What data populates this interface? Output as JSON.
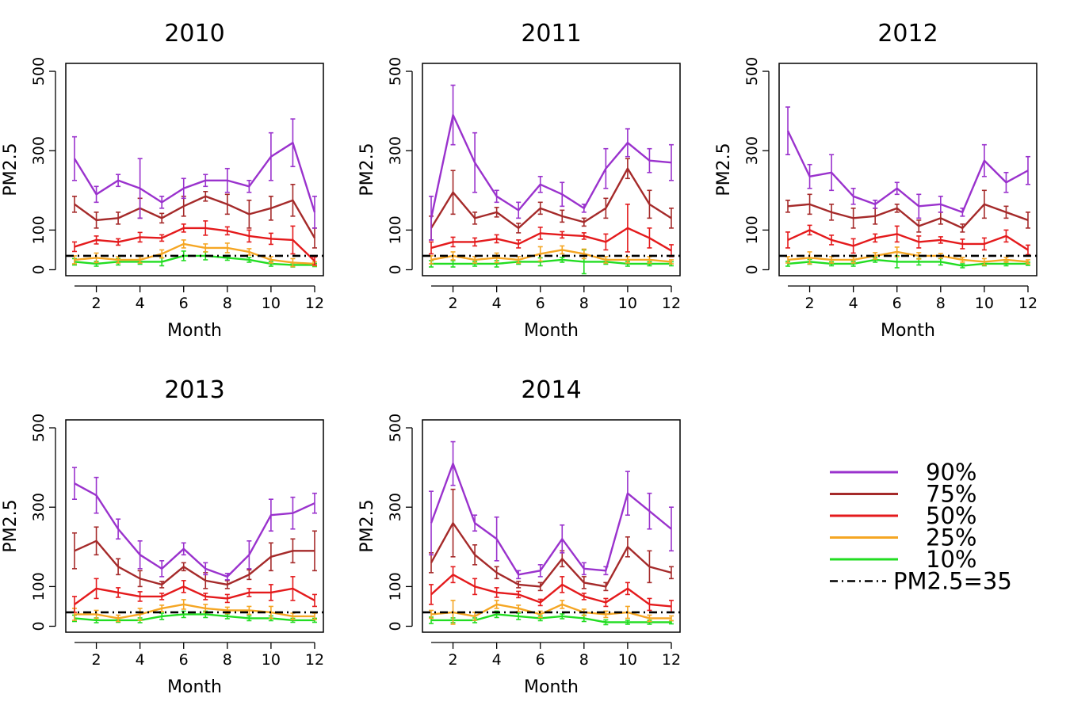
{
  "chart_data": [
    {
      "type": "line",
      "title": "2010",
      "xlabel": "Month",
      "ylabel": "PM2.5",
      "x": [
        1,
        2,
        3,
        4,
        5,
        6,
        7,
        8,
        9,
        10,
        11,
        12
      ],
      "xticks": [
        "2",
        "4",
        "6",
        "8",
        "10",
        "12"
      ],
      "yticks": [
        "0",
        "100",
        "300",
        "500"
      ],
      "xlim": [
        0.6,
        12.4
      ],
      "ylim": [
        -15,
        520
      ],
      "threshold": 35,
      "series": [
        {
          "name": "90%",
          "color": "#9A32CD",
          "values": [
            280,
            190,
            225,
            205,
            170,
            205,
            225,
            225,
            210,
            285,
            320,
            145
          ],
          "err": [
            55,
            20,
            15,
            75,
            15,
            25,
            15,
            30,
            15,
            60,
            60,
            40
          ]
        },
        {
          "name": "75%",
          "color": "#A52A2A",
          "values": [
            165,
            125,
            130,
            155,
            130,
            160,
            185,
            165,
            140,
            155,
            175,
            80
          ],
          "err": [
            20,
            20,
            15,
            25,
            12,
            25,
            12,
            25,
            35,
            30,
            40,
            25
          ]
        },
        {
          "name": "50%",
          "color": "#E41A1C",
          "values": [
            58,
            75,
            70,
            82,
            80,
            105,
            105,
            98,
            85,
            78,
            75,
            22
          ],
          "err": [
            12,
            10,
            8,
            12,
            8,
            10,
            18,
            10,
            15,
            14,
            35,
            10
          ]
        },
        {
          "name": "25%",
          "color": "#F5A623",
          "values": [
            25,
            30,
            25,
            25,
            40,
            65,
            55,
            55,
            45,
            25,
            18,
            15
          ],
          "err": [
            10,
            12,
            8,
            8,
            10,
            10,
            10,
            12,
            8,
            8,
            10,
            5
          ]
        },
        {
          "name": "10%",
          "color": "#22DD22",
          "values": [
            20,
            15,
            20,
            20,
            20,
            35,
            35,
            30,
            25,
            15,
            12,
            12
          ],
          "err": [
            8,
            6,
            8,
            6,
            10,
            12,
            10,
            6,
            6,
            6,
            5,
            4
          ]
        }
      ]
    },
    {
      "type": "line",
      "title": "2011",
      "xlabel": "Month",
      "ylabel": "PM2.5",
      "x": [
        1,
        2,
        3,
        4,
        5,
        6,
        7,
        8,
        9,
        10,
        11,
        12
      ],
      "xticks": [
        "2",
        "4",
        "6",
        "8",
        "10",
        "12"
      ],
      "yticks": [
        "0",
        "100",
        "300",
        "500"
      ],
      "xlim": [
        0.6,
        12.4
      ],
      "ylim": [
        -15,
        520
      ],
      "threshold": 35,
      "series": [
        {
          "name": "90%",
          "color": "#9A32CD",
          "values": [
            130,
            390,
            270,
            185,
            150,
            215,
            190,
            155,
            255,
            320,
            275,
            270
          ],
          "err": [
            55,
            75,
            75,
            15,
            20,
            20,
            30,
            10,
            50,
            35,
            30,
            45
          ]
        },
        {
          "name": "75%",
          "color": "#A52A2A",
          "values": [
            105,
            195,
            130,
            145,
            105,
            155,
            135,
            120,
            155,
            255,
            165,
            130
          ],
          "err": [
            30,
            55,
            15,
            12,
            12,
            15,
            15,
            10,
            25,
            25,
            35,
            25
          ]
        },
        {
          "name": "50%",
          "color": "#E41A1C",
          "values": [
            55,
            70,
            70,
            78,
            65,
            92,
            88,
            85,
            70,
            105,
            80,
            48
          ],
          "err": [
            15,
            12,
            10,
            10,
            10,
            15,
            8,
            8,
            20,
            60,
            25,
            15
          ]
        },
        {
          "name": "25%",
          "color": "#F5A623",
          "values": [
            25,
            35,
            25,
            30,
            25,
            40,
            50,
            40,
            25,
            25,
            25,
            20
          ],
          "err": [
            10,
            10,
            8,
            12,
            8,
            18,
            10,
            12,
            8,
            8,
            8,
            5
          ]
        },
        {
          "name": "10%",
          "color": "#22DD22",
          "values": [
            15,
            15,
            15,
            15,
            20,
            20,
            25,
            20,
            20,
            15,
            15,
            15
          ],
          "err": [
            8,
            8,
            6,
            8,
            6,
            10,
            6,
            30,
            6,
            6,
            5,
            5
          ]
        }
      ]
    },
    {
      "type": "line",
      "title": "2012",
      "xlabel": "Month",
      "ylabel": "PM2.5",
      "x": [
        1,
        2,
        3,
        4,
        5,
        6,
        7,
        8,
        9,
        10,
        11,
        12
      ],
      "xticks": [
        "2",
        "4",
        "6",
        "8",
        "10",
        "12"
      ],
      "yticks": [
        "0",
        "100",
        "300",
        "500"
      ],
      "xlim": [
        0.6,
        12.4
      ],
      "ylim": [
        -15,
        520
      ],
      "threshold": 35,
      "series": [
        {
          "name": "90%",
          "color": "#9A32CD",
          "values": [
            350,
            235,
            245,
            185,
            165,
            205,
            160,
            165,
            145,
            275,
            220,
            250
          ],
          "err": [
            60,
            30,
            45,
            20,
            10,
            15,
            30,
            20,
            10,
            40,
            25,
            35
          ]
        },
        {
          "name": "75%",
          "color": "#A52A2A",
          "values": [
            160,
            165,
            145,
            130,
            135,
            155,
            110,
            130,
            105,
            165,
            145,
            125
          ],
          "err": [
            15,
            25,
            20,
            25,
            20,
            10,
            15,
            15,
            10,
            35,
            15,
            20
          ]
        },
        {
          "name": "50%",
          "color": "#E41A1C",
          "values": [
            75,
            100,
            75,
            60,
            80,
            90,
            70,
            75,
            65,
            65,
            85,
            50
          ],
          "err": [
            20,
            12,
            12,
            18,
            10,
            20,
            15,
            8,
            12,
            15,
            15,
            12
          ]
        },
        {
          "name": "25%",
          "color": "#F5A623",
          "values": [
            25,
            30,
            25,
            25,
            35,
            45,
            35,
            35,
            25,
            20,
            25,
            20
          ],
          "err": [
            8,
            15,
            8,
            8,
            8,
            12,
            8,
            6,
            6,
            8,
            6,
            5
          ]
        },
        {
          "name": "10%",
          "color": "#22DD22",
          "values": [
            15,
            20,
            15,
            15,
            25,
            20,
            20,
            20,
            10,
            15,
            15,
            15
          ],
          "err": [
            6,
            6,
            5,
            6,
            6,
            15,
            8,
            8,
            5,
            5,
            5,
            4
          ]
        }
      ]
    },
    {
      "type": "line",
      "title": "2013",
      "xlabel": "Month",
      "ylabel": "PM2.5",
      "x": [
        1,
        2,
        3,
        4,
        5,
        6,
        7,
        8,
        9,
        10,
        11,
        12
      ],
      "xticks": [
        "2",
        "4",
        "6",
        "8",
        "10",
        "12"
      ],
      "yticks": [
        "0",
        "100",
        "300",
        "500"
      ],
      "xlim": [
        0.6,
        12.4
      ],
      "ylim": [
        -15,
        520
      ],
      "threshold": 35,
      "series": [
        {
          "name": "90%",
          "color": "#9A32CD",
          "values": [
            360,
            330,
            245,
            180,
            145,
            195,
            145,
            125,
            180,
            280,
            285,
            310
          ],
          "err": [
            40,
            45,
            25,
            35,
            20,
            15,
            15,
            8,
            35,
            40,
            40,
            25
          ]
        },
        {
          "name": "75%",
          "color": "#A52A2A",
          "values": [
            190,
            215,
            150,
            120,
            105,
            150,
            115,
            105,
            130,
            175,
            190,
            190
          ],
          "err": [
            45,
            35,
            20,
            20,
            8,
            10,
            20,
            10,
            12,
            35,
            30,
            50
          ]
        },
        {
          "name": "50%",
          "color": "#E41A1C",
          "values": [
            55,
            95,
            85,
            75,
            75,
            100,
            75,
            70,
            85,
            85,
            95,
            65
          ],
          "err": [
            20,
            25,
            12,
            12,
            8,
            15,
            8,
            10,
            10,
            20,
            30,
            15
          ]
        },
        {
          "name": "25%",
          "color": "#F5A623",
          "values": [
            30,
            30,
            20,
            30,
            45,
            55,
            45,
            40,
            40,
            35,
            25,
            25
          ],
          "err": [
            15,
            10,
            8,
            15,
            8,
            12,
            10,
            8,
            10,
            15,
            8,
            8
          ]
        },
        {
          "name": "10%",
          "color": "#22DD22",
          "values": [
            20,
            15,
            15,
            15,
            25,
            30,
            30,
            25,
            20,
            20,
            15,
            15
          ],
          "err": [
            8,
            6,
            5,
            6,
            8,
            8,
            8,
            6,
            6,
            6,
            5,
            5
          ]
        }
      ]
    },
    {
      "type": "line",
      "title": "2014",
      "xlabel": "Month",
      "ylabel": "PM2.5",
      "x": [
        1,
        2,
        3,
        4,
        5,
        6,
        7,
        8,
        9,
        10,
        11,
        12
      ],
      "xticks": [
        "2",
        "4",
        "6",
        "8",
        "10",
        "12"
      ],
      "yticks": [
        "0",
        "100",
        "300",
        "500"
      ],
      "xlim": [
        0.6,
        12.4
      ],
      "ylim": [
        -15,
        520
      ],
      "threshold": 35,
      "series": [
        {
          "name": "90%",
          "color": "#9A32CD",
          "values": [
            260,
            410,
            260,
            220,
            130,
            140,
            220,
            145,
            140,
            335,
            290,
            245
          ],
          "err": [
            80,
            55,
            20,
            55,
            10,
            15,
            35,
            15,
            10,
            55,
            45,
            55
          ]
        },
        {
          "name": "75%",
          "color": "#A52A2A",
          "values": [
            160,
            260,
            180,
            135,
            105,
            100,
            170,
            110,
            100,
            200,
            150,
            135
          ],
          "err": [
            25,
            85,
            25,
            15,
            8,
            10,
            20,
            15,
            10,
            25,
            40,
            15
          ]
        },
        {
          "name": "50%",
          "color": "#E41A1C",
          "values": [
            80,
            130,
            100,
            85,
            80,
            60,
            105,
            75,
            60,
            95,
            55,
            50
          ],
          "err": [
            25,
            20,
            20,
            12,
            8,
            8,
            20,
            8,
            10,
            15,
            15,
            15
          ]
        },
        {
          "name": "25%",
          "color": "#F5A623",
          "values": [
            30,
            35,
            25,
            55,
            45,
            30,
            55,
            35,
            30,
            35,
            20,
            20
          ],
          "err": [
            10,
            30,
            10,
            10,
            8,
            8,
            10,
            8,
            8,
            15,
            8,
            6
          ]
        },
        {
          "name": "10%",
          "color": "#22DD22",
          "values": [
            15,
            15,
            15,
            30,
            25,
            20,
            25,
            20,
            10,
            10,
            10,
            10
          ],
          "err": [
            8,
            6,
            6,
            8,
            8,
            6,
            6,
            8,
            6,
            5,
            5,
            4
          ]
        }
      ]
    }
  ],
  "legend": {
    "items": [
      {
        "label": "90%",
        "color": "#9A32CD",
        "style": "solid"
      },
      {
        "label": "75%",
        "color": "#A52A2A",
        "style": "solid"
      },
      {
        "label": "50%",
        "color": "#E41A1C",
        "style": "solid"
      },
      {
        "label": "25%",
        "color": "#F5A623",
        "style": "solid"
      },
      {
        "label": "10%",
        "color": "#22DD22",
        "style": "solid"
      },
      {
        "label": "PM2.5=35",
        "color": "#000000",
        "style": "dotdash"
      }
    ]
  }
}
